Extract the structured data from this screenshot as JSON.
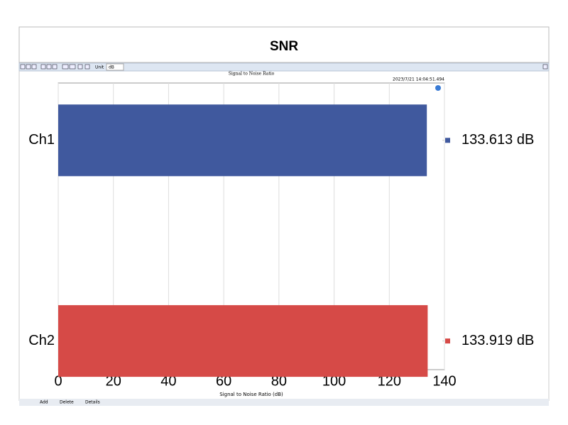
{
  "header": {
    "title": "SNR"
  },
  "toolbar": {
    "unit_label": "Unit",
    "unit_value": "dB"
  },
  "footer": {
    "buttons": [
      "Add",
      "Delete",
      "Details"
    ]
  },
  "chart_data": {
    "type": "hbar",
    "title": "Signal to Noise Ratio",
    "timestamp": "2023/7/21 14:04:51.494",
    "x_label": "Signal to Noise Ratio (dB)",
    "categories": [
      "Ch1",
      "Ch2"
    ],
    "values": [
      133.613,
      133.919
    ],
    "value_labels": [
      "133.613 dB",
      "133.919 dB"
    ],
    "colors": [
      "#40599e",
      "#d64a47"
    ],
    "xlim": [
      0,
      140
    ],
    "xticks": [
      0,
      20,
      40,
      60,
      80,
      100,
      120,
      140
    ],
    "grid": true
  }
}
